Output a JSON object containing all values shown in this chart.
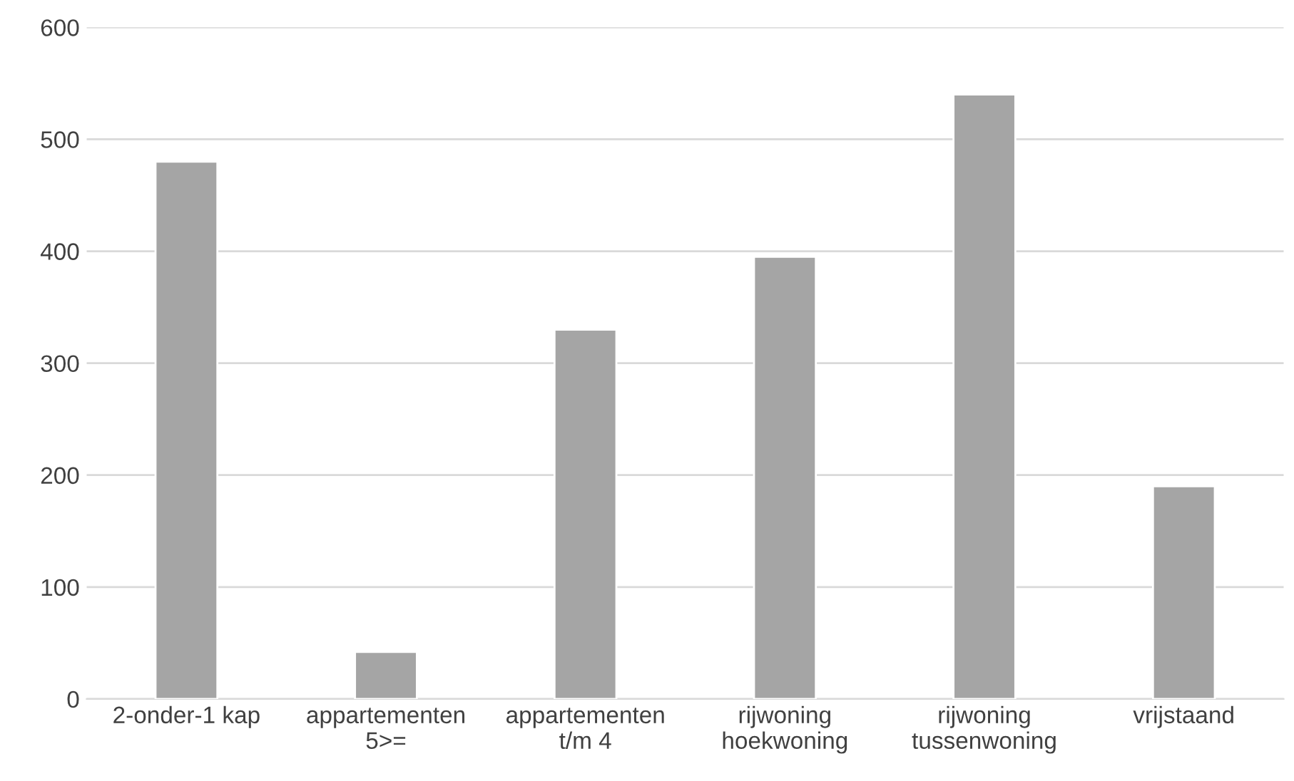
{
  "chart_data": {
    "type": "bar",
    "categories": [
      "2-onder-1 kap",
      "appartementen\n5>=",
      "appartementen\nt/m 4",
      "rijwoning\nhoekwoning",
      "rijwoning\ntussenwoning",
      "vrijstaand"
    ],
    "values": [
      480,
      42,
      330,
      395,
      540,
      190
    ],
    "color": "#a5a5a5",
    "ylim": [
      0,
      600
    ],
    "yticks": [
      0,
      100,
      200,
      300,
      400,
      500,
      600
    ],
    "grid": "y"
  }
}
